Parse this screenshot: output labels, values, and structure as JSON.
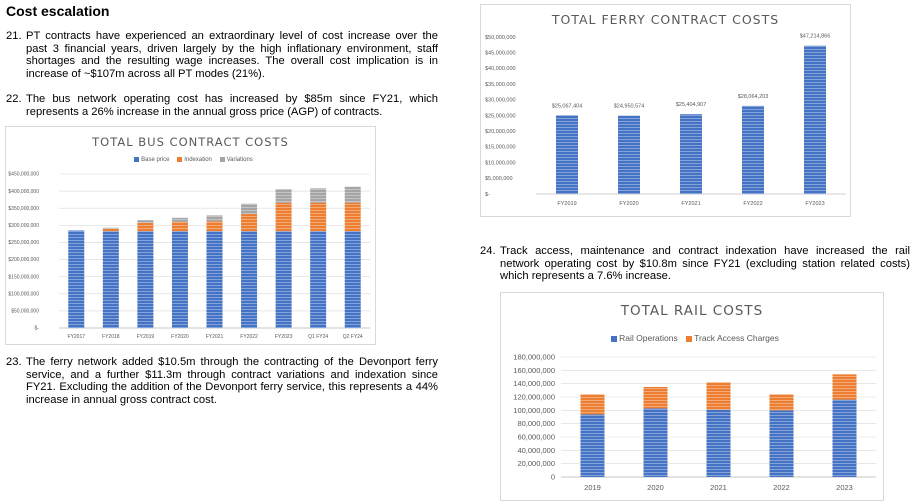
{
  "heading": "Cost escalation",
  "paragraphs": {
    "p21": {
      "num": "21.",
      "text": "PT contracts have experienced an extraordinary level of cost increase over the past 3 financial years, driven largely by the high inflationary environment, staff shortages and the resulting wage increases. The overall cost implication is in increase of ~$107m across all PT modes (21%)."
    },
    "p22": {
      "num": "22.",
      "text": "The bus network operating cost has increased by $85m since FY21, which represents a 26% increase in the annual gross price (AGP) of contracts."
    },
    "p23": {
      "num": "23.",
      "text": "The ferry network added $10.5m through the contracting of the Devonport ferry service, and a further $11.3m through contract variations and indexation since FY21. Excluding the addition of the Devonport ferry service, this represents a 44% increase in annual gross contract cost."
    },
    "p24": {
      "num": "24.",
      "text": "Track access, maintenance and contract indexation have increased the rail network operating cost by $10.8m since FY21 (excluding station related costs) which represents a 7.6% increase."
    }
  },
  "colors": {
    "blue": "#4472c4",
    "orange": "#ed7d31",
    "gray": "#a5a5a5",
    "axis": "#595959",
    "grid": "#d9d9d9"
  },
  "charts": {
    "bus": {
      "title": "TOTAL BUS CONTRACT COSTS",
      "legend": [
        "Base price",
        "Indexation",
        "Variations"
      ],
      "yticks": [
        "$-",
        "$50,000,000",
        "$100,000,000",
        "$150,000,000",
        "$200,000,000",
        "$250,000,000",
        "$300,000,000",
        "$350,000,000",
        "$400,000,000",
        "$450,000,000"
      ]
    },
    "ferry": {
      "title": "TOTAL FERRY CONTRACT COSTS",
      "yticks": [
        "$-",
        "$5,000,000",
        "$10,000,000",
        "$15,000,000",
        "$20,000,000",
        "$25,000,000",
        "$30,000,000",
        "$35,000,000",
        "$40,000,000",
        "$45,000,000",
        "$50,000,000"
      ]
    },
    "rail": {
      "title": "TOTAL RAIL COSTS",
      "legend": [
        "Rail Operations",
        "Track Access Charges"
      ],
      "yticks": [
        "0",
        "20,000,000",
        "40,000,000",
        "60,000,000",
        "80,000,000",
        "100,000,000",
        "120,000,000",
        "140,000,000",
        "160,000,000",
        "180,000,000"
      ]
    }
  },
  "chart_data": [
    {
      "type": "bar",
      "title": "TOTAL BUS CONTRACT COSTS",
      "stacked": true,
      "categories": [
        "FY2017",
        "FY2018",
        "FY2019",
        "FY2020",
        "FY2021",
        "FY2022",
        "FY2023",
        "Q1 FY24",
        "Q2 FY24"
      ],
      "series": [
        {
          "name": "Base price",
          "values": [
            285000000,
            283000000,
            283000000,
            283000000,
            283000000,
            283000000,
            283000000,
            283000000,
            283000000
          ]
        },
        {
          "name": "Indexation",
          "values": [
            0,
            7000000,
            24000000,
            27000000,
            29000000,
            50000000,
            83000000,
            83000000,
            83000000
          ]
        },
        {
          "name": "Variations",
          "values": [
            0,
            3000000,
            8000000,
            12000000,
            17000000,
            30000000,
            40000000,
            42000000,
            47000000
          ]
        }
      ],
      "ylim": [
        0,
        450000000
      ],
      "legend_position": "top"
    },
    {
      "type": "bar",
      "title": "TOTAL FERRY CONTRACT COSTS",
      "categories": [
        "FY2019",
        "FY2020",
        "FY2021",
        "FY2022",
        "FY2023"
      ],
      "values": [
        25067404,
        24950574,
        25404907,
        28064203,
        47214866
      ],
      "data_labels": [
        "$25,067,404",
        "$24,950,574",
        "$25,404,907",
        "$28,064,203",
        "$47,214,866"
      ],
      "ylim": [
        0,
        50000000
      ]
    },
    {
      "type": "bar",
      "title": "TOTAL RAIL COSTS",
      "stacked": true,
      "categories": [
        "2019",
        "2020",
        "2021",
        "2022",
        "2023"
      ],
      "series": [
        {
          "name": "Rail Operations",
          "values": [
            94000000,
            103000000,
            101000000,
            100000000,
            116000000
          ]
        },
        {
          "name": "Track Access Charges",
          "values": [
            30000000,
            32000000,
            41000000,
            24000000,
            38000000
          ]
        }
      ],
      "ylim": [
        0,
        180000000
      ],
      "legend_position": "top"
    }
  ]
}
